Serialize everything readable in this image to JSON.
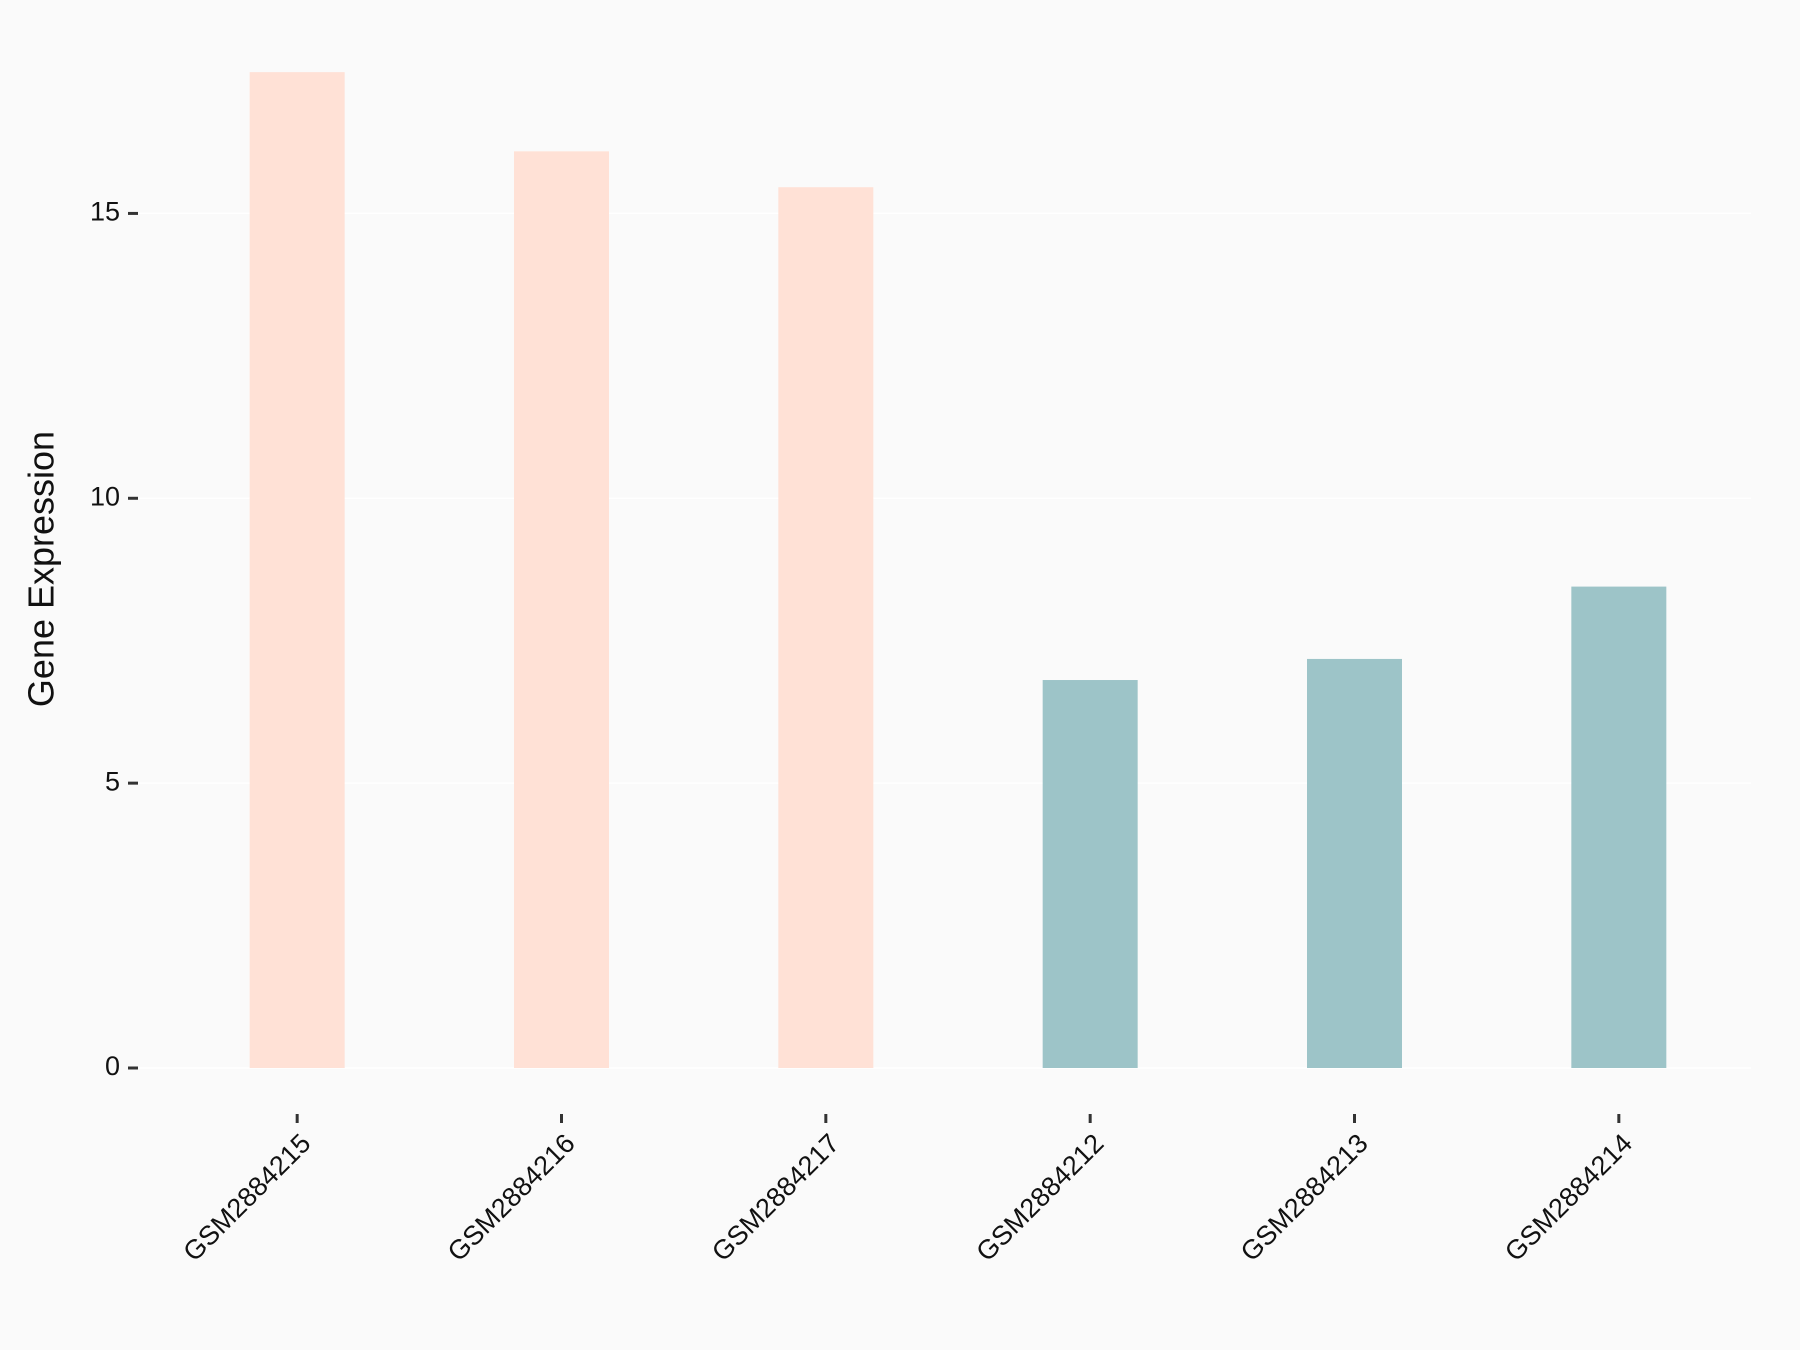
{
  "chart_data": {
    "type": "bar",
    "y_label": "Gene Expression",
    "categories": [
      "GSM2884215",
      "GSM2884216",
      "GSM2884217",
      "GSM2884212",
      "GSM2884213",
      "GSM2884214"
    ],
    "values": [
      17.48,
      16.09,
      15.46,
      6.81,
      7.18,
      8.45
    ],
    "colors": [
      "#ffe1d6",
      "#ffe1d6",
      "#ffe1d6",
      "#9dc4c8",
      "#9dc4c8",
      "#9dc4c8"
    ],
    "ylim": [
      0,
      17.5
    ],
    "yticks": [
      0,
      5,
      10,
      15
    ],
    "grid": true
  }
}
